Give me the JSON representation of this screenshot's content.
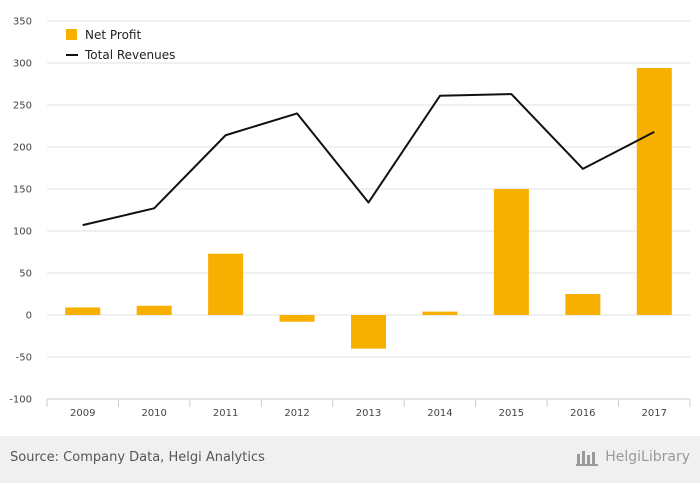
{
  "chart_data": {
    "type": "bar",
    "title": "",
    "xlabel": "",
    "ylabel": "",
    "categories": [
      "2009",
      "2010",
      "2011",
      "2012",
      "2013",
      "2014",
      "2015",
      "2016",
      "2017"
    ],
    "series": [
      {
        "name": "Net Profit",
        "kind": "bar",
        "color": "#f7b000",
        "values": [
          9,
          11,
          73,
          -8,
          -40,
          4,
          150,
          25,
          294
        ]
      },
      {
        "name": "Total Revenues",
        "kind": "line",
        "color": "#111111",
        "values": [
          107,
          127,
          214,
          240,
          134,
          261,
          263,
          174,
          218
        ]
      }
    ],
    "ylim": [
      -100,
      350
    ],
    "yticks": [
      -100,
      -50,
      0,
      50,
      100,
      150,
      200,
      250,
      300,
      350
    ],
    "grid": true,
    "legend": "top-left"
  },
  "footer": {
    "source": "Source: Company Data, Helgi Analytics",
    "brand": "HelgiLibrary"
  }
}
